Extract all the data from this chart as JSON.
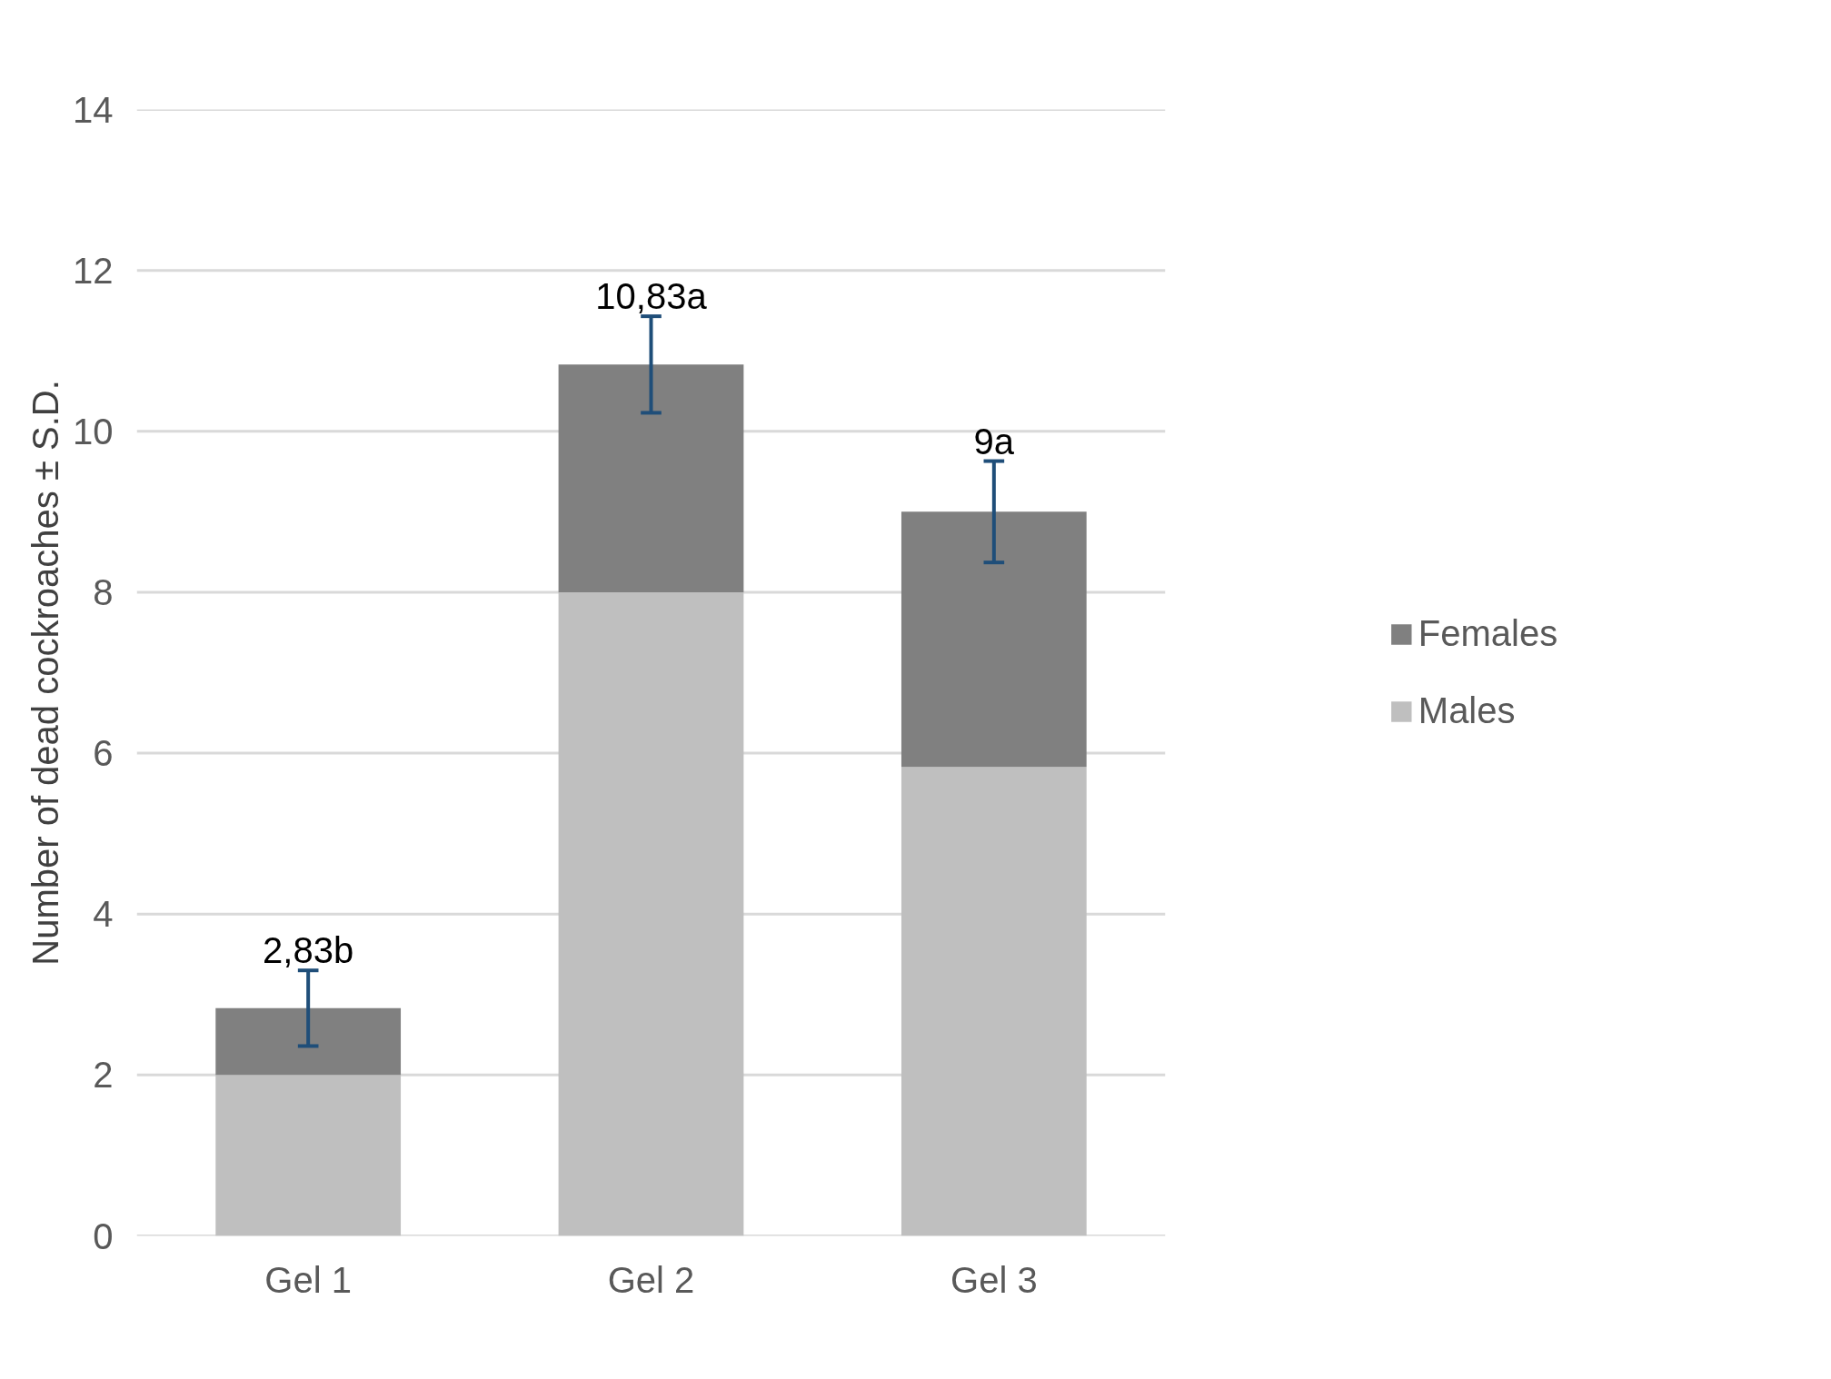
{
  "chart_data": {
    "type": "bar",
    "stacked": true,
    "ylabel": "Number of dead cockroaches ± S.D.",
    "categories": [
      "Gel 1",
      "Gel 2",
      "Gel 3"
    ],
    "series": [
      {
        "name": "Males",
        "color": "#bfbfbf",
        "values": [
          2.0,
          8.0,
          5.83
        ]
      },
      {
        "name": "Females",
        "color": "#808080",
        "values": [
          0.83,
          2.83,
          3.17
        ],
        "errors": [
          0.47,
          0.6,
          0.63
        ]
      }
    ],
    "totals": [
      "2,83b",
      "10,83a",
      "9a"
    ],
    "ylim": [
      0,
      14
    ],
    "yticks": [
      0,
      2,
      4,
      6,
      8,
      10,
      12,
      14
    ],
    "grid": "y",
    "legend": "right"
  }
}
